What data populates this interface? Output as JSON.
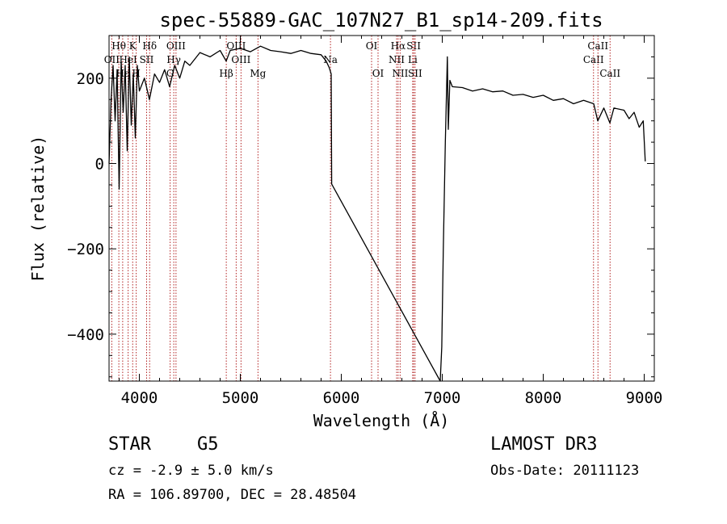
{
  "chart_data": {
    "type": "line",
    "title": "spec-55889-GAC_107N27_B1_sp14-209.fits",
    "xlabel": "Wavelength (Å)",
    "ylabel": "Flux (relative)",
    "xlim": [
      3700,
      9100
    ],
    "ylim": [
      -510,
      300
    ],
    "x_ticks": [
      4000,
      5000,
      6000,
      7000,
      8000,
      9000
    ],
    "y_ticks": [
      -400,
      -200,
      0,
      200
    ],
    "series": [
      {
        "name": "flux",
        "x": [
          3700,
          3720,
          3740,
          3760,
          3780,
          3800,
          3820,
          3840,
          3860,
          3880,
          3900,
          3920,
          3940,
          3960,
          3980,
          4000,
          4050,
          4100,
          4150,
          4200,
          4250,
          4300,
          4350,
          4400,
          4450,
          4500,
          4600,
          4700,
          4800,
          4860,
          4900,
          5000,
          5100,
          5200,
          5300,
          5400,
          5500,
          5600,
          5700,
          5800,
          5850,
          5880,
          5900,
          5905,
          6980,
          6995,
          7010,
          7030,
          7050,
          7060,
          7075,
          7100,
          7200,
          7300,
          7400,
          7500,
          7600,
          7700,
          7800,
          7900,
          8000,
          8100,
          8200,
          8300,
          8400,
          8500,
          8540,
          8600,
          8660,
          8700,
          8800,
          8850,
          8900,
          8950,
          8990,
          9010
        ],
        "y": [
          0,
          150,
          230,
          100,
          220,
          -60,
          240,
          120,
          230,
          30,
          250,
          90,
          210,
          60,
          230,
          170,
          200,
          150,
          210,
          190,
          220,
          180,
          230,
          200,
          240,
          230,
          260,
          250,
          265,
          240,
          265,
          270,
          262,
          275,
          265,
          262,
          258,
          265,
          258,
          255,
          240,
          225,
          210,
          -48,
          -510,
          -430,
          -200,
          50,
          250,
          80,
          195,
          180,
          178,
          170,
          175,
          168,
          170,
          160,
          162,
          155,
          160,
          148,
          152,
          140,
          148,
          140,
          100,
          130,
          95,
          130,
          125,
          105,
          120,
          85,
          100,
          5
        ]
      }
    ],
    "line_markers": [
      {
        "label": "OII",
        "wavelength": 3727,
        "row": 2
      },
      {
        "label": "Hθ",
        "wavelength": 3797,
        "row": 1
      },
      {
        "label": "Hε",
        "wavelength": 3835,
        "row": 3
      },
      {
        "label": "HeI",
        "wavelength": 3889,
        "row": 2
      },
      {
        "label": "K",
        "wavelength": 3934,
        "row": 1
      },
      {
        "label": "H",
        "wavelength": 3969,
        "row": 3
      },
      {
        "label": "SII",
        "wavelength": 4072,
        "row": 2
      },
      {
        "label": "Hδ",
        "wavelength": 4102,
        "row": 1
      },
      {
        "label": "OIII",
        "wavelength": 4363,
        "row": 1
      },
      {
        "label": "Hγ",
        "wavelength": 4341,
        "row": 2
      },
      {
        "label": "G",
        "wavelength": 4305,
        "row": 3
      },
      {
        "label": "Hβ",
        "wavelength": 4861,
        "row": 3
      },
      {
        "label": "OIII",
        "wavelength": 4959,
        "row": 1
      },
      {
        "label": "OIII",
        "wavelength": 5007,
        "row": 2
      },
      {
        "label": "Mg",
        "wavelength": 5175,
        "row": 3
      },
      {
        "label": "Na",
        "wavelength": 5893,
        "row": 2
      },
      {
        "label": "OI",
        "wavelength": 6300,
        "row": 1
      },
      {
        "label": "OI",
        "wavelength": 6364,
        "row": 3
      },
      {
        "label": "NII",
        "wavelength": 6548,
        "row": 2
      },
      {
        "label": "Hα",
        "wavelength": 6563,
        "row": 1
      },
      {
        "label": "NII",
        "wavelength": 6583,
        "row": 3
      },
      {
        "label": "SII",
        "wavelength": 6717,
        "row": 1
      },
      {
        "label": "Li",
        "wavelength": 6707,
        "row": 2
      },
      {
        "label": "SII",
        "wavelength": 6731,
        "row": 3
      },
      {
        "label": "CaII",
        "wavelength": 8498,
        "row": 2
      },
      {
        "label": "CaII",
        "wavelength": 8542,
        "row": 1
      },
      {
        "label": "CaII",
        "wavelength": 8662,
        "row": 3
      }
    ]
  },
  "info": {
    "object_class": "STAR",
    "subclass": "G5",
    "survey": "LAMOST DR3",
    "cz": "cz = -2.9 ± 5.0 km/s",
    "obs_date": "Obs-Date: 20111123",
    "radec": "RA = 106.89700, DEC =  28.48504"
  }
}
